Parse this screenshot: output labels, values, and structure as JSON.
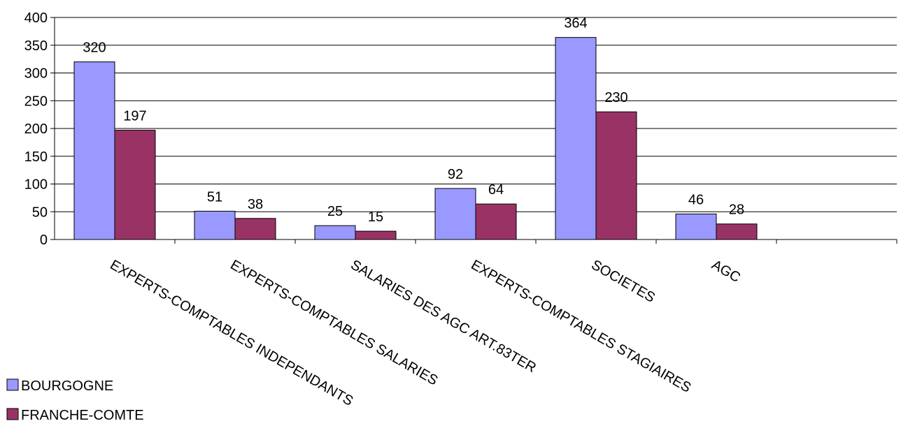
{
  "chart_data": {
    "type": "bar",
    "categories": [
      "EXPERTS-COMPTABLES INDEPENDANTS",
      "EXPERTS-COMPTABLES SALARIES",
      "SALARIES DES AGC ART.83TER",
      "EXPERTS-COMPTABLES STAGIAIRES",
      "SOCIETES",
      "AGC",
      ""
    ],
    "series": [
      {
        "name": "BOURGOGNE",
        "values": [
          320,
          51,
          25,
          92,
          364,
          46,
          null
        ],
        "color": "#9999ff"
      },
      {
        "name": "FRANCHE-COMTE",
        "values": [
          197,
          38,
          15,
          64,
          230,
          28,
          null
        ],
        "color": "#993366"
      }
    ],
    "ylim": [
      0,
      400
    ],
    "yticks": [
      0,
      50,
      100,
      150,
      200,
      250,
      300,
      350,
      400
    ],
    "grid": true,
    "data_labels": true,
    "legend": "bottom-left"
  }
}
